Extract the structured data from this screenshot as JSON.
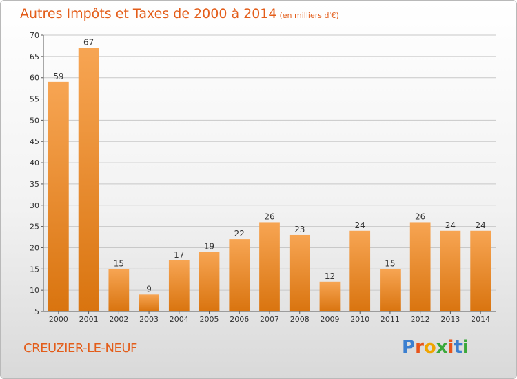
{
  "header": {
    "title": "Autres Impôts et Taxes de 2000 à 2014",
    "unit": "(en milliers d'€)"
  },
  "footer": {
    "commune": "CREUZIER-LE-NEUF",
    "logo_text": "Proxiti"
  },
  "colors": {
    "title": "#e35d1a",
    "bar_top": "#f7a553",
    "bar_bottom": "#d9740f",
    "axis": "#555555",
    "grid": "#c8c8c8"
  },
  "chart_data": {
    "type": "bar",
    "title": "Autres Impôts et Taxes de 2000 à 2014",
    "unit": "(en milliers d'€)",
    "categories": [
      "2000",
      "2001",
      "2002",
      "2003",
      "2004",
      "2005",
      "2006",
      "2007",
      "2008",
      "2009",
      "2010",
      "2011",
      "2012",
      "2013",
      "2014"
    ],
    "values": [
      59,
      67,
      15,
      9,
      17,
      19,
      22,
      26,
      23,
      12,
      24,
      15,
      26,
      24,
      24
    ],
    "ylim": [
      5,
      70
    ],
    "yticks": [
      5,
      10,
      15,
      20,
      25,
      30,
      35,
      40,
      45,
      50,
      55,
      60,
      65,
      70
    ],
    "grid": "horizontal",
    "data_labels": true
  }
}
